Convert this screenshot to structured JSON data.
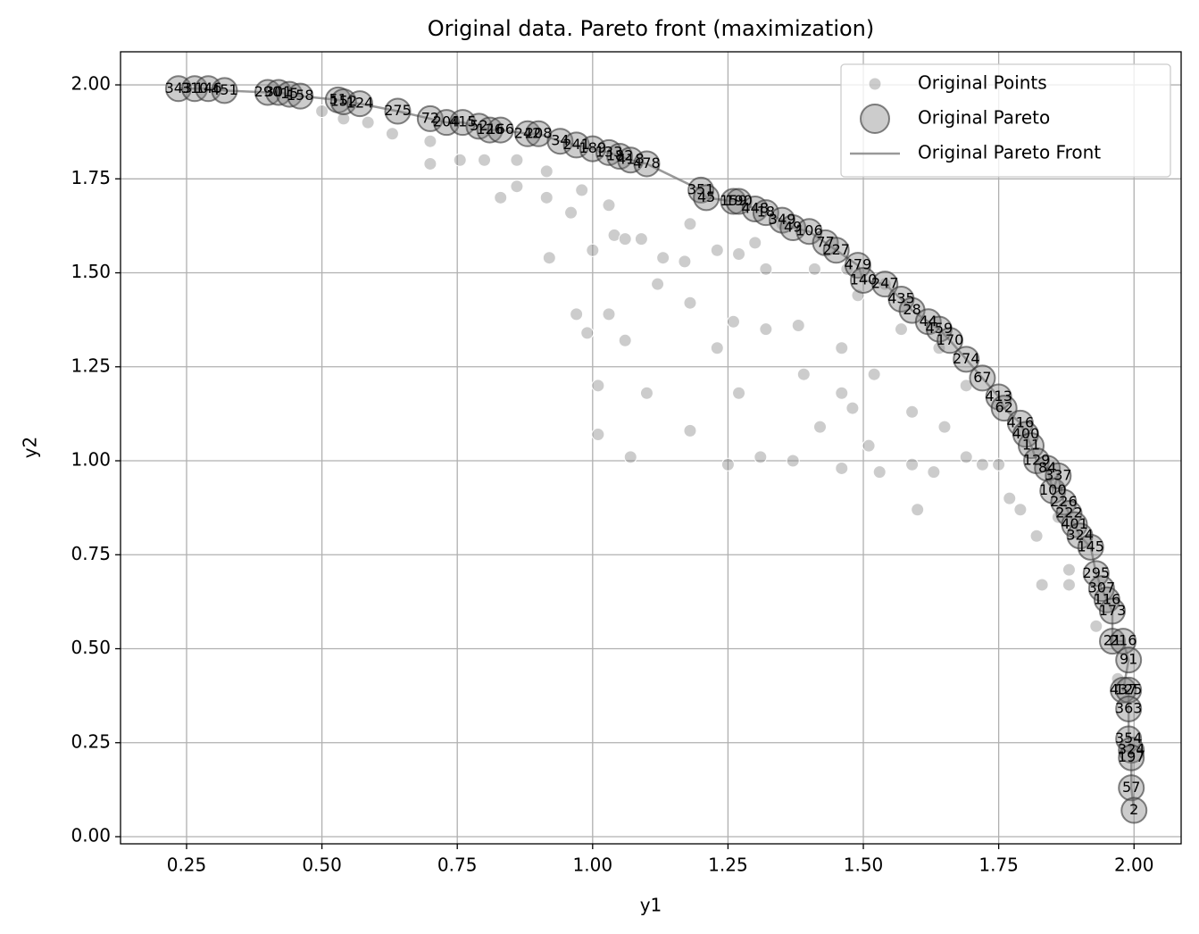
{
  "chart_data": {
    "type": "scatter",
    "title": "Original data. Pareto front (maximization)",
    "x_label": "y1",
    "y_label": "y2",
    "xlim": [
      0.128,
      2.087
    ],
    "ylim": [
      -0.019,
      2.088
    ],
    "xticks": [
      {
        "value": 0.25,
        "label": "0.25"
      },
      {
        "value": 0.5,
        "label": "0.50"
      },
      {
        "value": 0.75,
        "label": "0.75"
      },
      {
        "value": 1.0,
        "label": "1.00"
      },
      {
        "value": 1.25,
        "label": "1.25"
      },
      {
        "value": 1.5,
        "label": "1.50"
      },
      {
        "value": 1.75,
        "label": "1.75"
      },
      {
        "value": 2.0,
        "label": "2.00"
      }
    ],
    "yticks": [
      {
        "value": 0.0,
        "label": "0.00"
      },
      {
        "value": 0.25,
        "label": "0.25"
      },
      {
        "value": 0.5,
        "label": "0.50"
      },
      {
        "value": 0.75,
        "label": "0.75"
      },
      {
        "value": 1.0,
        "label": "1.00"
      },
      {
        "value": 1.25,
        "label": "1.25"
      },
      {
        "value": 1.5,
        "label": "1.50"
      },
      {
        "value": 1.75,
        "label": "1.75"
      },
      {
        "value": 2.0,
        "label": "2.00"
      }
    ],
    "grid": true,
    "legend": "upper right",
    "series": [
      {
        "name": "Original Points",
        "color": "#808080",
        "x": [
          0.5,
          0.54,
          0.585,
          0.63,
          0.7,
          0.7,
          0.755,
          0.8,
          0.86,
          0.83,
          0.86,
          0.915,
          0.915,
          0.96,
          0.98,
          1.0,
          1.03,
          1.04,
          1.06,
          1.09,
          1.13,
          1.17,
          1.18,
          1.23,
          1.27,
          1.3,
          1.32,
          1.35,
          1.41,
          1.47,
          1.49,
          1.54,
          1.57,
          1.64,
          1.69,
          0.92,
          0.97,
          0.99,
          1.03,
          1.06,
          1.12,
          1.18,
          1.23,
          1.26,
          1.32,
          1.38,
          1.39,
          1.46,
          1.52,
          1.59,
          1.65,
          1.72,
          1.77,
          1.82,
          1.88,
          1.93,
          1.97,
          1.01,
          1.01,
          1.07,
          1.1,
          1.18,
          1.25,
          1.27,
          1.31,
          1.37,
          1.42,
          1.46,
          1.51,
          1.53,
          1.59,
          1.63,
          1.69,
          1.75,
          1.79,
          1.86,
          1.88,
          1.83,
          1.6,
          1.46,
          1.48
        ],
        "values": [
          1.93,
          1.91,
          1.9,
          1.87,
          1.85,
          1.79,
          1.8,
          1.8,
          1.8,
          1.7,
          1.73,
          1.77,
          1.7,
          1.66,
          1.72,
          1.56,
          1.68,
          1.6,
          1.59,
          1.59,
          1.54,
          1.53,
          1.63,
          1.56,
          1.55,
          1.58,
          1.51,
          1.63,
          1.51,
          1.51,
          1.44,
          1.47,
          1.35,
          1.3,
          1.2,
          1.54,
          1.39,
          1.34,
          1.39,
          1.32,
          1.47,
          1.42,
          1.3,
          1.37,
          1.35,
          1.36,
          1.23,
          1.3,
          1.23,
          1.13,
          1.09,
          0.99,
          0.9,
          0.8,
          0.71,
          0.56,
          0.42,
          1.2,
          1.07,
          1.01,
          1.18,
          1.08,
          0.99,
          1.18,
          1.01,
          1.0,
          1.09,
          0.98,
          1.04,
          0.97,
          0.99,
          0.97,
          1.01,
          0.99,
          0.87,
          0.85,
          0.67,
          0.67,
          0.87,
          1.18,
          1.14
        ]
      },
      {
        "name": "Original Pareto",
        "color": "#808080",
        "x": [
          0.235,
          0.265,
          0.29,
          0.32,
          0.4,
          0.42,
          0.44,
          0.46,
          0.53,
          0.54,
          0.57,
          0.64,
          0.7,
          0.73,
          0.76,
          0.79,
          0.81,
          0.83,
          0.88,
          0.9,
          0.94,
          0.97,
          1.0,
          1.03,
          1.05,
          1.07,
          1.1,
          1.2,
          1.21,
          1.26,
          1.27,
          1.3,
          1.32,
          1.35,
          1.37,
          1.4,
          1.43,
          1.45,
          1.49,
          1.5,
          1.54,
          1.57,
          1.59,
          1.62,
          1.64,
          1.66,
          1.69,
          1.72,
          1.75,
          1.76,
          1.79,
          1.8,
          1.81,
          1.82,
          1.84,
          1.85,
          1.86,
          1.87,
          1.88,
          1.89,
          1.9,
          1.92,
          1.93,
          1.94,
          1.95,
          1.96,
          1.96,
          1.98,
          1.99,
          1.98,
          1.99,
          1.99,
          1.99,
          1.995,
          1.995,
          1.995,
          2.0
        ],
        "values": [
          1.99,
          1.99,
          1.99,
          1.985,
          1.98,
          1.98,
          1.975,
          1.97,
          1.96,
          1.955,
          1.95,
          1.93,
          1.91,
          1.9,
          1.9,
          1.89,
          1.88,
          1.88,
          1.87,
          1.87,
          1.85,
          1.84,
          1.83,
          1.82,
          1.81,
          1.8,
          1.79,
          1.72,
          1.7,
          1.69,
          1.69,
          1.67,
          1.66,
          1.64,
          1.62,
          1.61,
          1.58,
          1.56,
          1.52,
          1.48,
          1.47,
          1.43,
          1.4,
          1.37,
          1.35,
          1.32,
          1.27,
          1.22,
          1.17,
          1.14,
          1.1,
          1.07,
          1.04,
          1.0,
          0.98,
          0.92,
          0.96,
          0.89,
          0.86,
          0.83,
          0.8,
          0.77,
          0.7,
          0.66,
          0.63,
          0.6,
          0.52,
          0.52,
          0.47,
          0.39,
          0.39,
          0.34,
          0.26,
          0.23,
          0.21,
          0.13,
          0.07
        ],
        "point_labels": [
          "343",
          "310",
          "146",
          "451",
          "290",
          "301",
          "15",
          "158",
          "51",
          "152",
          "124",
          "275",
          "72",
          "204",
          "415",
          "52",
          "126",
          "166",
          "242",
          "208",
          "34",
          "241",
          "189",
          "133",
          "182",
          "418",
          "478",
          "351",
          "45",
          "159",
          "190",
          "448",
          "18",
          "349",
          "49",
          "106",
          "77",
          "227",
          "479",
          "140",
          "247",
          "435",
          "28",
          "44",
          "459",
          "170",
          "274",
          "67",
          "413",
          "62",
          "416",
          "400",
          "11",
          "129",
          "84",
          "100",
          "337",
          "226",
          "222",
          "401",
          "324",
          "145",
          "295",
          "307",
          "116",
          "173",
          "21",
          "216",
          "91",
          "437",
          "125",
          "363",
          "354",
          "324",
          "197",
          "57",
          "2"
        ]
      },
      {
        "name": "Original Pareto Front",
        "color": "#808080"
      }
    ]
  }
}
